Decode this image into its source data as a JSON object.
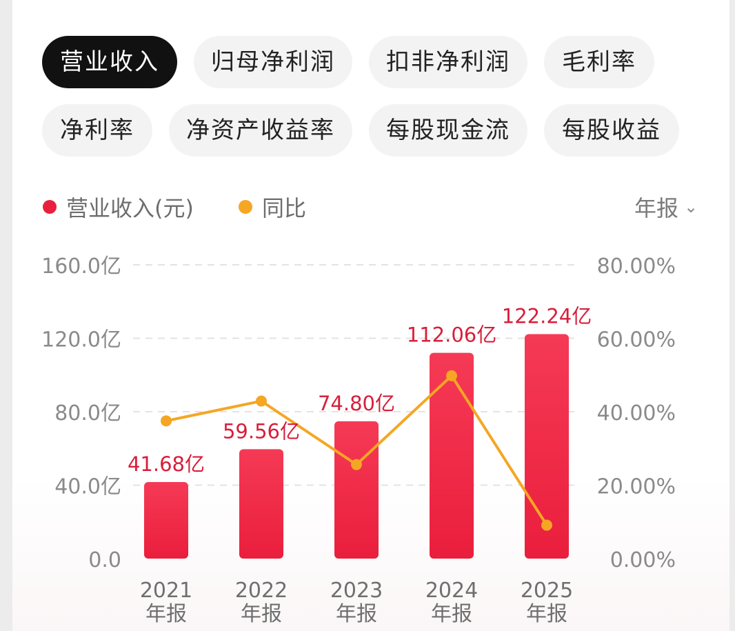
{
  "tabs": [
    {
      "label": "营业收入",
      "active": true
    },
    {
      "label": "归母净利润",
      "active": false
    },
    {
      "label": "扣非净利润",
      "active": false
    },
    {
      "label": "毛利率",
      "active": false
    },
    {
      "label": "净利率",
      "active": false
    },
    {
      "label": "净资产收益率",
      "active": false
    },
    {
      "label": "每股现金流",
      "active": false
    },
    {
      "label": "每股收益",
      "active": false
    }
  ],
  "legend": {
    "revenue_label": "营业收入(元)",
    "yoy_label": "同比"
  },
  "period_selector": {
    "label": "年报"
  },
  "colors": {
    "bar": "#f0304a",
    "bar_dark": "#e71f3c",
    "line": "#f5a623",
    "value_label": "#d81e3a",
    "axis_text": "#8a8a8a",
    "grid": "#e3e3e3"
  },
  "chart_data": {
    "type": "bar",
    "categories": [
      "2021\n年报",
      "2022\n年报",
      "2023\n年报",
      "2024\n年报",
      "2025\n年报"
    ],
    "series": [
      {
        "name": "营业收入(元)",
        "type": "bar",
        "unit": "亿",
        "values": [
          41.68,
          59.56,
          74.8,
          112.06,
          122.24
        ],
        "labels": [
          "41.68亿",
          "59.56亿",
          "74.80亿",
          "112.06亿",
          "122.24亿"
        ]
      },
      {
        "name": "同比",
        "type": "line",
        "unit": "%",
        "axis": "right",
        "values": [
          37.5,
          42.9,
          25.6,
          49.8,
          9.1
        ]
      }
    ],
    "y_left": {
      "min": 0,
      "max": 160,
      "ticks": [
        0,
        40,
        80,
        120,
        160
      ],
      "tick_labels": [
        "0.0",
        "40.0亿",
        "80.0亿",
        "120.0亿",
        "160.0亿"
      ]
    },
    "y_right": {
      "min": 0,
      "max": 80,
      "ticks": [
        0,
        20,
        40,
        60,
        80
      ],
      "tick_labels": [
        "0.00%",
        "20.00%",
        "40.00%",
        "60.00%",
        "80.00%"
      ]
    },
    "grid": true,
    "legend_position": "top-left"
  }
}
